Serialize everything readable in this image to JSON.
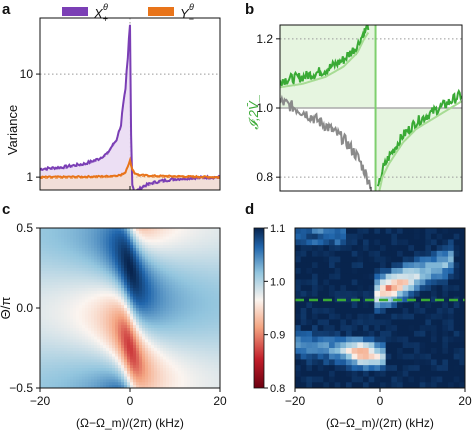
{
  "panels": {
    "a": "a",
    "b": "b",
    "c": "c",
    "d": "d"
  },
  "chart_data": [
    {
      "panel": "a",
      "type": "line",
      "title": "",
      "xlabel": "",
      "ylabel": "Variance",
      "yscale": "log",
      "ylim": [
        0.75,
        35
      ],
      "xlim": [
        -20,
        20
      ],
      "yticks": [
        1,
        10
      ],
      "ytick_labels": [
        "1",
        "10"
      ],
      "grid": "dotted horizontal at 1 and 10, dotted vertical at 0",
      "legend_position": "top",
      "colors": {
        "X": "#7b3fb5",
        "X_fill": "#eadcf3",
        "Y": "#e8741a",
        "Y_fill": "#f7ddc4"
      },
      "series": [
        {
          "name": "X+θ",
          "legend_main": "X",
          "legend_sub": "+",
          "legend_sup": "θ",
          "x": [
            -20,
            -15,
            -10,
            -7,
            -5,
            -3,
            -2,
            -1,
            -0.5,
            0,
            0.2,
            0.5,
            1,
            2,
            3,
            5,
            7,
            10,
            15,
            20
          ],
          "values": [
            1.2,
            1.25,
            1.35,
            1.5,
            1.7,
            2.3,
            3.2,
            7.0,
            14.0,
            30.0,
            3.0,
            0.85,
            0.72,
            0.76,
            0.82,
            0.88,
            0.92,
            0.96,
            0.99,
            1.0
          ]
        },
        {
          "name": "Y−θ",
          "legend_main": "Y",
          "legend_sub": "−",
          "legend_sup": "θ",
          "x": [
            -20,
            -10,
            -5,
            -2,
            -1,
            -0.3,
            0,
            0.3,
            1,
            2,
            5,
            10,
            20
          ],
          "values": [
            1.0,
            1.01,
            1.02,
            1.05,
            1.12,
            1.35,
            1.45,
            1.25,
            1.1,
            1.05,
            1.03,
            1.02,
            1.0
          ]
        }
      ]
    },
    {
      "panel": "b",
      "type": "line",
      "ylabel": "𝓘,2V̄_",
      "ylim": [
        0.76,
        1.24
      ],
      "xlim": [
        -20,
        20
      ],
      "yticks": [
        0.8,
        1.0,
        1.2
      ],
      "ytick_labels": [
        "0.8",
        "1.0",
        "1.2"
      ],
      "grid": "dotted horizontal at 0.8 and 1.2, solid gray line at 1.0, green vertical line at 1",
      "colors": {
        "green": "#3aaa35",
        "green_fill": "#e6f5e0",
        "gray": "#8a8a8a"
      },
      "series": [
        {
          "name": "𝓘",
          "color": "green",
          "x": [
            -20,
            -15,
            -10,
            -6,
            -3,
            -1.5,
            -0.5,
            1.5,
            2.5,
            4,
            7,
            10,
            15,
            20
          ],
          "values": [
            1.08,
            1.09,
            1.11,
            1.14,
            1.18,
            1.22,
            1.24,
            0.76,
            0.82,
            0.86,
            0.92,
            0.96,
            1.0,
            1.04
          ]
        },
        {
          "name": "2V̄_",
          "color": "gray",
          "x": [
            -20,
            -15,
            -10,
            -6,
            -3,
            -1.5,
            -0.5,
            0
          ],
          "values": [
            1.02,
            0.99,
            0.95,
            0.91,
            0.86,
            0.82,
            0.79,
            0.78
          ]
        }
      ]
    },
    {
      "panel": "c",
      "type": "heatmap",
      "xlabel": "(Ω−Ω_m)/(2π) (kHz)",
      "ylabel": "Θ/π",
      "xlim": [
        -20,
        20
      ],
      "ylim": [
        -0.5,
        0.5
      ],
      "xticks": [
        -20,
        0,
        20
      ],
      "xtick_labels": [
        "−20",
        "0",
        "20"
      ],
      "yticks": [
        -0.5,
        0,
        0.5
      ],
      "ytick_labels": [
        "−0.5",
        "0.0",
        "0.5"
      ],
      "colorscale": "diverging blue-white-red (shared with panel d)"
    },
    {
      "panel": "d",
      "type": "heatmap",
      "xlabel": "(Ω−Ω_m)/(2π) (kHz)",
      "xlim": [
        -20,
        20
      ],
      "ylim": [
        -0.5,
        0.5
      ],
      "xticks": [
        -20,
        0,
        20
      ],
      "xtick_labels": [
        "−20",
        "0",
        "20"
      ],
      "colorbar": {
        "min": 0.8,
        "max": 1.1,
        "ticks": [
          0.8,
          0.9,
          1.0,
          1.1
        ],
        "tick_labels": [
          "0.8",
          "0.9",
          "1.0",
          "1.1"
        ]
      },
      "marker_line": {
        "style": "dashed",
        "color": "#3aaa35",
        "theta": 0.05
      }
    }
  ]
}
